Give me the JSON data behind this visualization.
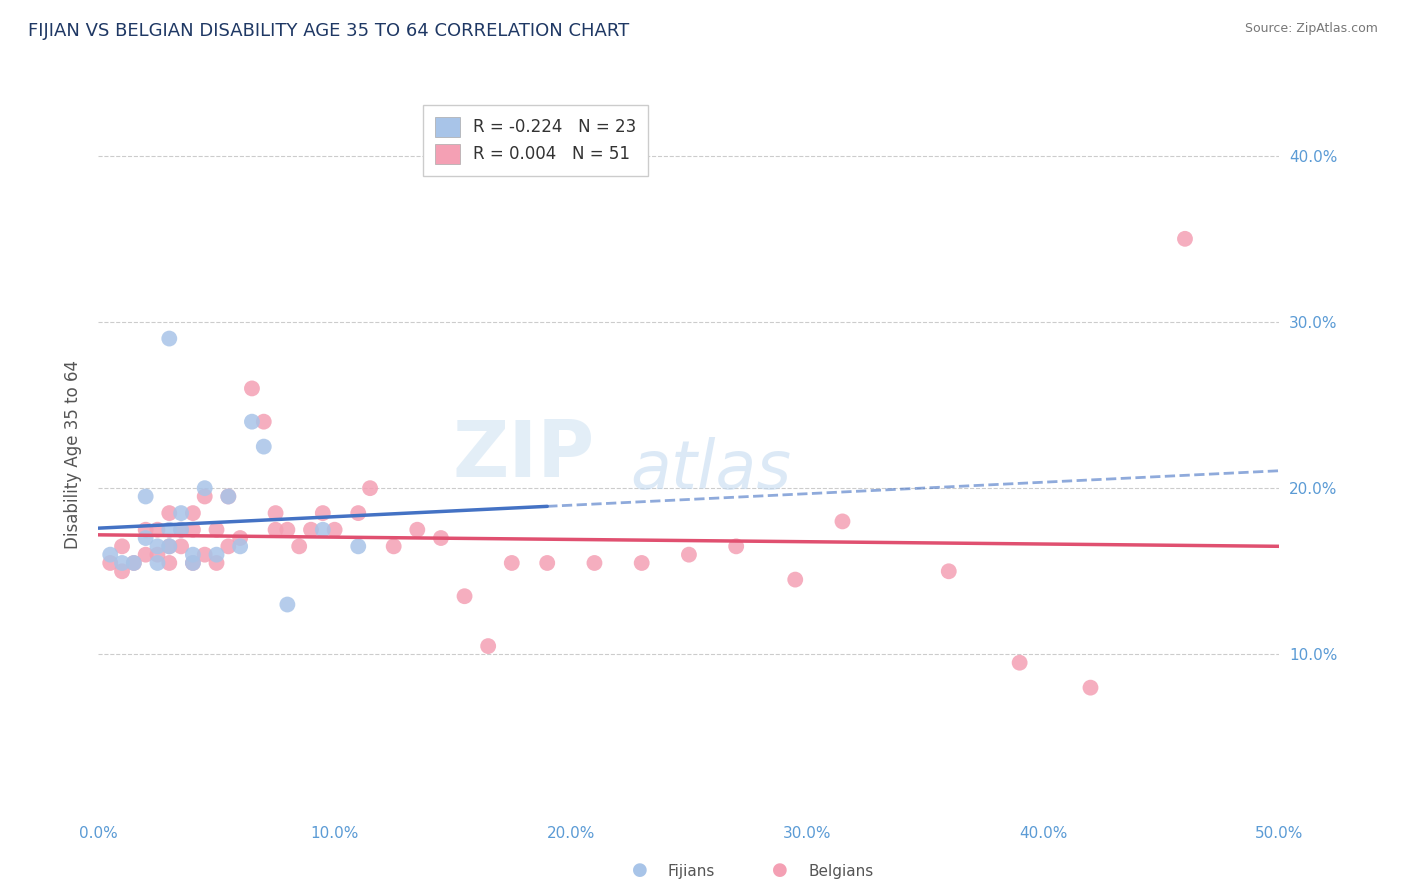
{
  "title": "FIJIAN VS BELGIAN DISABILITY AGE 35 TO 64 CORRELATION CHART",
  "source": "Source: ZipAtlas.com",
  "ylabel": "Disability Age 35 to 64",
  "xlim": [
    0.0,
    0.5
  ],
  "ylim": [
    0.0,
    0.44
  ],
  "xticks": [
    0.0,
    0.1,
    0.2,
    0.3,
    0.4,
    0.5
  ],
  "yticks": [
    0.1,
    0.2,
    0.3,
    0.4
  ],
  "xticklabels": [
    "0.0%",
    "10.0%",
    "20.0%",
    "30.0%",
    "40.0%",
    "50.0%"
  ],
  "yticklabels_right": [
    "10.0%",
    "20.0%",
    "30.0%",
    "40.0%"
  ],
  "fijian_R": -0.224,
  "fijian_N": 23,
  "belgian_R": 0.004,
  "belgian_N": 51,
  "fijian_color": "#a8c4e8",
  "belgian_color": "#f4a0b4",
  "fijian_line_color": "#4472C4",
  "belgian_line_color": "#E05070",
  "background_color": "#ffffff",
  "grid_color": "#cccccc",
  "ytick_label_color": "#5b9bd5",
  "xtick_label_color": "#5b9bd5",
  "watermark_zip": "ZIP",
  "watermark_atlas": "atlas",
  "title_color": "#1f3864",
  "fijian_x": [
    0.005,
    0.01,
    0.015,
    0.02,
    0.02,
    0.025,
    0.025,
    0.03,
    0.03,
    0.03,
    0.035,
    0.035,
    0.04,
    0.04,
    0.045,
    0.05,
    0.055,
    0.06,
    0.065,
    0.07,
    0.08,
    0.095,
    0.11
  ],
  "fijian_y": [
    0.16,
    0.155,
    0.155,
    0.17,
    0.195,
    0.155,
    0.165,
    0.165,
    0.29,
    0.175,
    0.175,
    0.185,
    0.155,
    0.16,
    0.2,
    0.16,
    0.195,
    0.165,
    0.24,
    0.225,
    0.13,
    0.175,
    0.165
  ],
  "belgian_x": [
    0.005,
    0.01,
    0.01,
    0.015,
    0.02,
    0.02,
    0.025,
    0.025,
    0.03,
    0.03,
    0.03,
    0.035,
    0.035,
    0.04,
    0.04,
    0.04,
    0.045,
    0.045,
    0.05,
    0.05,
    0.055,
    0.055,
    0.06,
    0.065,
    0.07,
    0.075,
    0.075,
    0.08,
    0.085,
    0.09,
    0.095,
    0.1,
    0.11,
    0.115,
    0.125,
    0.135,
    0.145,
    0.155,
    0.165,
    0.175,
    0.19,
    0.21,
    0.23,
    0.25,
    0.27,
    0.295,
    0.315,
    0.36,
    0.39,
    0.42,
    0.46
  ],
  "belgian_y": [
    0.155,
    0.15,
    0.165,
    0.155,
    0.16,
    0.175,
    0.16,
    0.175,
    0.155,
    0.165,
    0.185,
    0.165,
    0.175,
    0.155,
    0.175,
    0.185,
    0.16,
    0.195,
    0.155,
    0.175,
    0.165,
    0.195,
    0.17,
    0.26,
    0.24,
    0.175,
    0.185,
    0.175,
    0.165,
    0.175,
    0.185,
    0.175,
    0.185,
    0.2,
    0.165,
    0.175,
    0.17,
    0.135,
    0.105,
    0.155,
    0.155,
    0.155,
    0.155,
    0.16,
    0.165,
    0.145,
    0.18,
    0.15,
    0.095,
    0.08,
    0.35
  ]
}
